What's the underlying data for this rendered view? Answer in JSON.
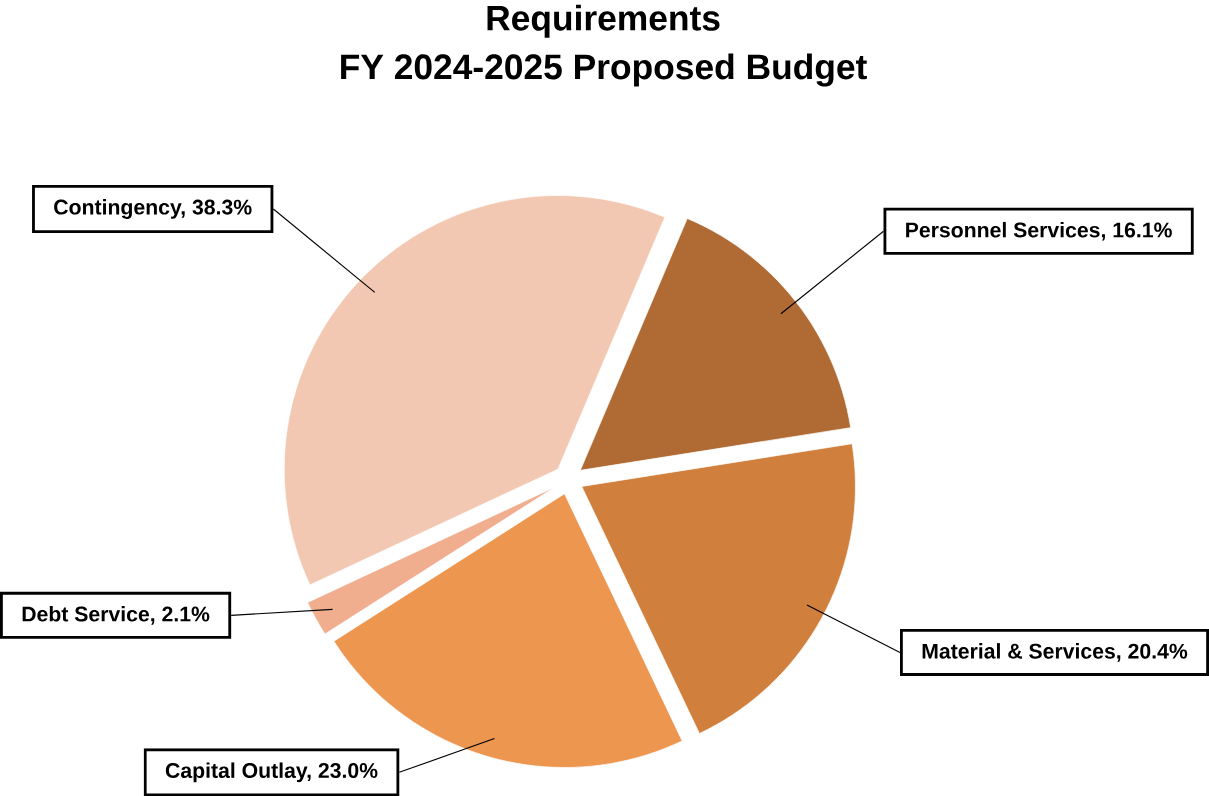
{
  "chart_data": {
    "type": "pie",
    "title": "Requirements",
    "subtitle": "FY 2024-2025 Proposed Budget",
    "categories": [
      "Personnel Services, 16.1%",
      "Material & Services, 20.4%",
      "Capital Outlay, 23.0%",
      "Debt Service, 2.1%",
      "Contingency, 38.3%"
    ],
    "values": [
      16.1,
      20.4,
      23.0,
      2.1,
      38.3
    ],
    "colors": [
      "#b06a33",
      "#d0803c",
      "#ec9650",
      "#f0ae8e",
      "#f3c8b3"
    ]
  }
}
